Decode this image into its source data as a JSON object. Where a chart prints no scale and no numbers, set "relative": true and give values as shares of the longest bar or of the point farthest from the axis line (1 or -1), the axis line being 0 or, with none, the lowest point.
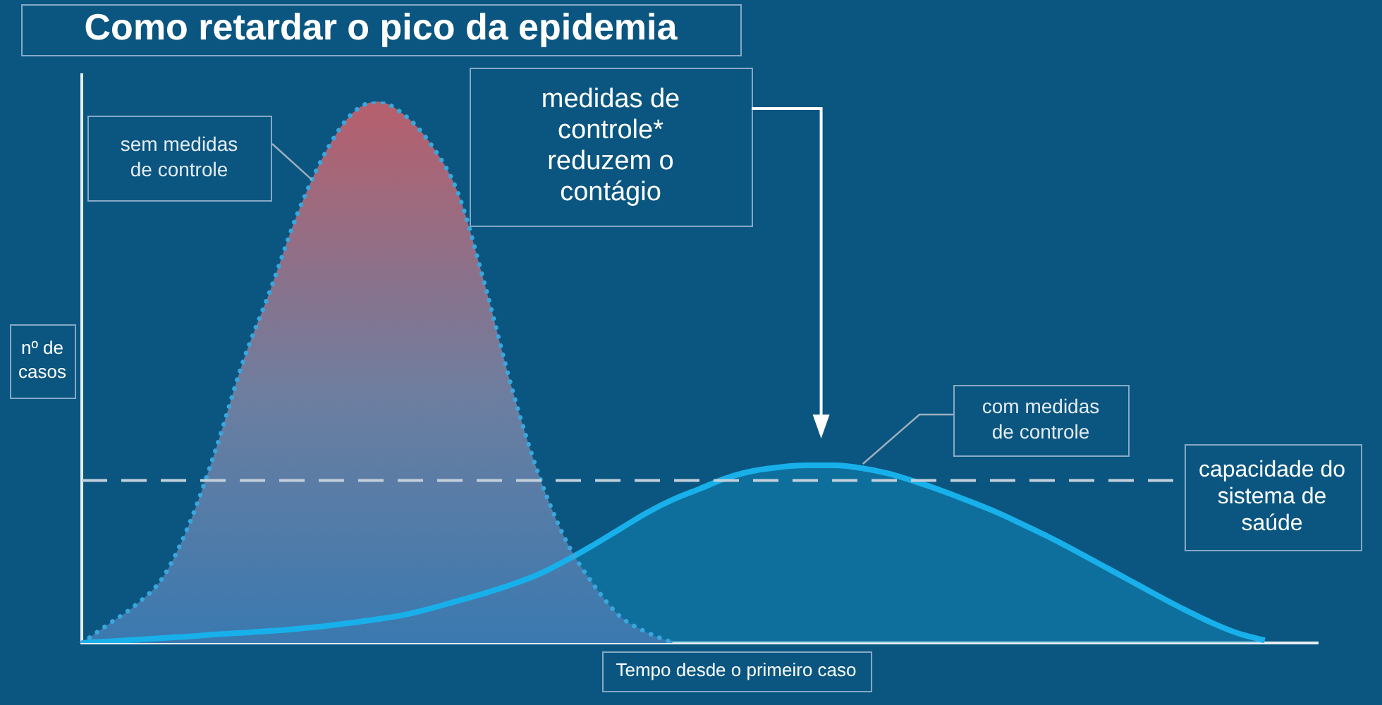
{
  "chart_data": {
    "type": "area",
    "title": "Como retardar o pico da epidemia",
    "xlabel": "Tempo desde o primeiro caso",
    "ylabel": "nº de casos",
    "relative": true,
    "grid": false,
    "legend": false,
    "tick_labels": false,
    "categories": [
      null,
      null,
      null,
      null,
      null,
      null,
      null,
      null,
      null,
      null,
      null,
      null,
      null,
      null,
      null,
      null,
      null,
      null,
      null,
      null,
      null,
      null,
      null,
      null,
      null,
      null,
      null,
      null,
      null,
      null,
      null,
      null,
      null,
      null,
      null,
      null,
      null,
      null,
      null,
      null,
      null,
      null,
      null,
      null,
      null,
      null,
      null
    ],
    "series": [
      {
        "color": "#3aa7dc",
        "line_style": "dotted",
        "values": [
          0,
          0.035,
          0.07,
          0.12,
          0.22,
          0.36,
          0.52,
          0.65,
          0.79,
          0.9,
          0.975,
          1,
          0.975,
          0.92,
          0.83,
          0.66,
          0.47,
          0.31,
          0.19,
          0.11,
          0.05,
          0.02,
          0,
          null,
          null,
          null,
          null,
          null,
          null,
          null,
          null,
          null,
          null,
          null,
          null,
          null,
          null,
          null,
          null,
          null,
          null,
          null,
          null,
          null,
          null,
          null,
          null
        ]
      },
      {
        "color": "#18b0ea",
        "line_style": "solid",
        "values": [
          0,
          0.003,
          0.006,
          0.009,
          0.012,
          0.016,
          0.019,
          0.022,
          0.026,
          0.031,
          0.037,
          0.044,
          0.052,
          0.064,
          0.078,
          0.092,
          0.108,
          0.127,
          0.152,
          0.18,
          0.21,
          0.24,
          0.265,
          0.285,
          0.305,
          0.318,
          0.325,
          0.328,
          0.328,
          0.323,
          0.313,
          0.298,
          0.281,
          0.262,
          0.242,
          0.219,
          0.195,
          0.169,
          0.142,
          0.115,
          0.088,
          0.062,
          0.038,
          0.018,
          0.005,
          null,
          null
        ]
      }
    ],
    "ref_lines": [
      {
        "axis": "y",
        "value": 0.3,
        "label": "capacidade do sistema de saúde",
        "color": "#c3cfdb",
        "line_style": "dashed"
      }
    ],
    "annotations": [
      "sem medidas de controle",
      "medidas de controle* reduzem o contágio",
      "com medidas de controle"
    ]
  }
}
